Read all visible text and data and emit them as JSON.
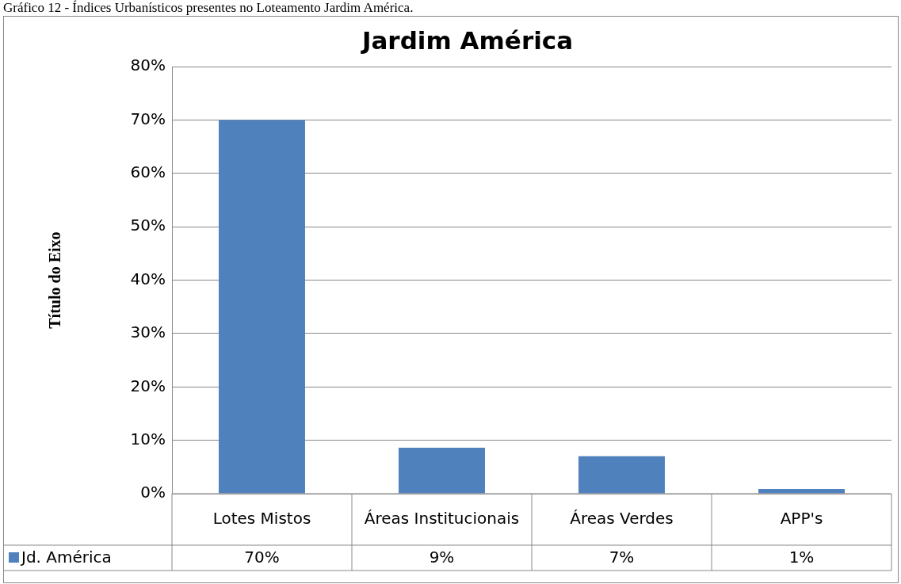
{
  "chart_data": {
    "type": "bar",
    "title": "Jardim América",
    "ylabel": "Título do Eixo",
    "annotations": [
      "Gráfico 12 - Índices Urbanísticos presentes no Loteamento Jardim América."
    ],
    "categories": [
      "Lotes Mistos",
      "Áreas Institucionais",
      "Áreas Verdes",
      "APP's"
    ],
    "series": [
      {
        "name": "Jd. América",
        "color": "#4f81bd",
        "values": [
          70,
          8.6,
          7,
          0.9
        ],
        "value_labels": [
          "70%",
          "9%",
          "7%",
          "1%"
        ]
      }
    ],
    "ylim": [
      0,
      80
    ],
    "yticks": [
      {
        "value": 0,
        "label": "0%"
      },
      {
        "value": 10,
        "label": "10%"
      },
      {
        "value": 20,
        "label": "20%"
      },
      {
        "value": 30,
        "label": "30%"
      },
      {
        "value": 40,
        "label": "40%"
      },
      {
        "value": 50,
        "label": "50%"
      },
      {
        "value": 60,
        "label": "60%"
      },
      {
        "value": 70,
        "label": "70%"
      },
      {
        "value": 80,
        "label": "80%"
      }
    ],
    "grid": "y",
    "legend": "bottom"
  }
}
